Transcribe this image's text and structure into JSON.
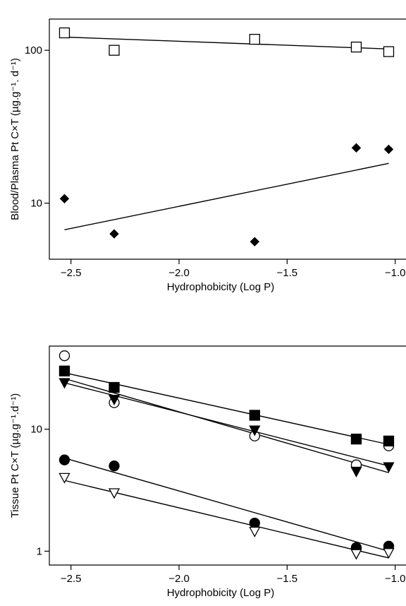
{
  "chart_data": [
    {
      "type": "scatter",
      "title": "",
      "xlabel": "Hydrophobicity (Log P)",
      "ylabel": "Blood/Plasma Pt C×T (µg.g⁻¹. d⁻¹)",
      "xlim": [
        -2.6,
        -0.95
      ],
      "ylim": [
        4.3,
        160
      ],
      "yscale": "log",
      "x_ticks": [
        -2.5,
        -2.0,
        -1.5,
        -1.0
      ],
      "x_tick_labels": [
        "−2.5",
        "−2.0",
        "−1.5",
        "−1.0"
      ],
      "y_ticks": [
        10,
        100
      ],
      "y_tick_labels": [
        "10",
        "100"
      ],
      "grid": false,
      "series": [
        {
          "marker": "open-square",
          "x": [
            -2.53,
            -2.3,
            -1.65,
            -1.18,
            -1.03
          ],
          "y": [
            130,
            100,
            118,
            105,
            98
          ],
          "fit": {
            "x": [
              -2.53,
              -1.03
            ],
            "y": [
              122,
              102
            ]
          }
        },
        {
          "marker": "filled-diamond",
          "x": [
            -2.53,
            -2.3,
            -1.65,
            -1.18,
            -1.03
          ],
          "y": [
            10.7,
            6.3,
            5.6,
            23,
            22.5
          ],
          "fit": {
            "x": [
              -2.53,
              -1.03
            ],
            "y": [
              6.7,
              18.2
            ]
          }
        }
      ]
    },
    {
      "type": "scatter",
      "title": "",
      "xlabel": "Hydrophobicity (Log P)",
      "ylabel": "Tissue Pt C×T (µg.g⁻¹.d⁻¹)",
      "xlim": [
        -2.6,
        -0.95
      ],
      "ylim": [
        0.77,
        48
      ],
      "yscale": "log",
      "x_ticks": [
        -2.5,
        -2.0,
        -1.5,
        -1.0
      ],
      "x_tick_labels": [
        "−2.5",
        "−2.0",
        "−1.5",
        "−1.0"
      ],
      "y_ticks": [
        1,
        10
      ],
      "y_tick_labels": [
        "1",
        "10"
      ],
      "grid": false,
      "series": [
        {
          "marker": "open-circle",
          "x": [
            -2.53,
            -2.3,
            -1.65,
            -1.18,
            -1.03
          ],
          "y": [
            40,
            16.5,
            8.8,
            5.1,
            7.3
          ],
          "fit": {
            "x": [
              -2.53,
              -1.03
            ],
            "y": [
              26,
              4.4
            ]
          }
        },
        {
          "marker": "filled-square",
          "x": [
            -2.53,
            -2.3,
            -1.65,
            -1.18,
            -1.03
          ],
          "y": [
            30,
            22,
            13,
            8.3,
            8.0
          ],
          "fit": {
            "x": [
              -2.53,
              -1.03
            ],
            "y": [
              29,
              7.5
            ]
          }
        },
        {
          "marker": "filled-triangle-down",
          "x": [
            -2.53,
            -2.3,
            -1.65,
            -1.18,
            -1.03
          ],
          "y": [
            24,
            17.5,
            9.8,
            4.5,
            4.9
          ],
          "fit": {
            "x": [
              -2.53,
              -1.03
            ],
            "y": [
              24,
              5.0
            ]
          }
        },
        {
          "marker": "filled-circle",
          "x": [
            -2.53,
            -2.3,
            -1.65,
            -1.18,
            -1.03
          ],
          "y": [
            5.6,
            5.0,
            1.7,
            1.07,
            1.1
          ],
          "fit": {
            "x": [
              -2.53,
              -1.03
            ],
            "y": [
              5.8,
              1.0
            ]
          }
        },
        {
          "marker": "open-triangle-down",
          "x": [
            -2.53,
            -2.3,
            -1.65,
            -1.18,
            -1.03
          ],
          "y": [
            4.0,
            3.0,
            1.45,
            0.95,
            0.97
          ],
          "fit": {
            "x": [
              -2.53,
              -1.03
            ],
            "y": [
              3.8,
              0.88
            ]
          }
        }
      ]
    }
  ]
}
